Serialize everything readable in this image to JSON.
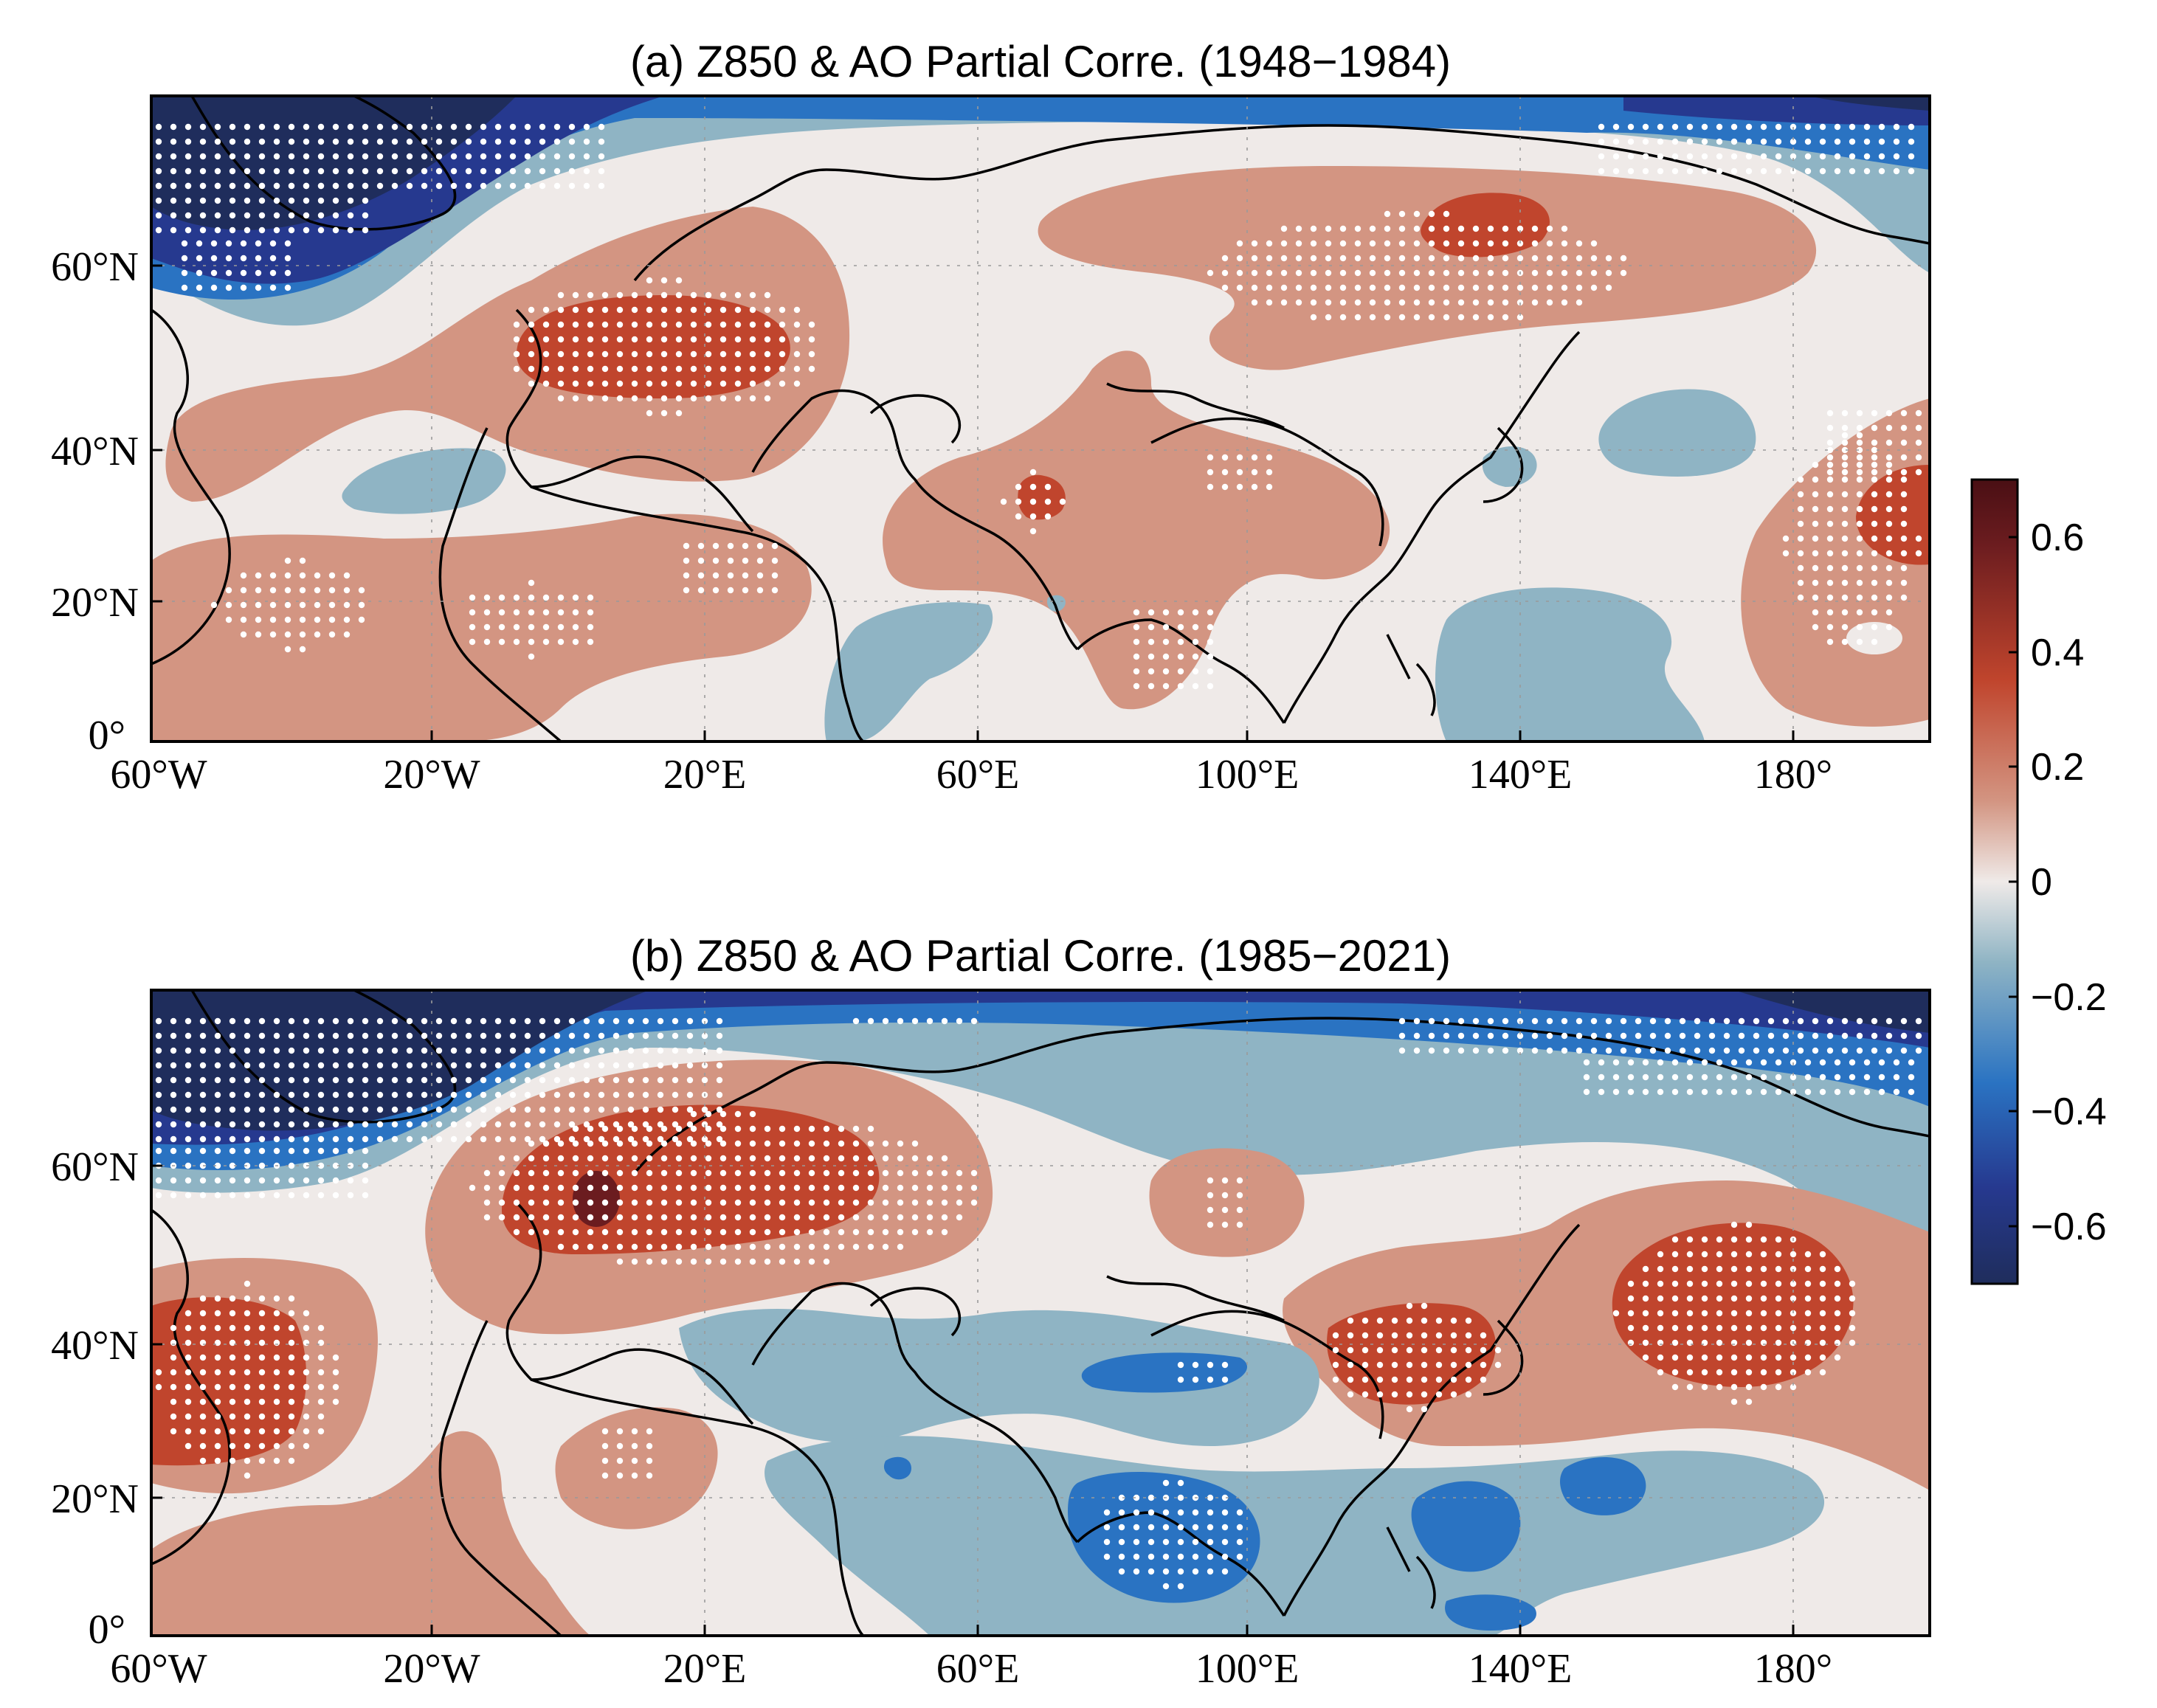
{
  "figure": {
    "panels": [
      {
        "id": "a",
        "title": "(a) Z850 & AO Partial Corre. (1948−1984)",
        "x_ticks": [
          "60°W",
          "20°W",
          "20°E",
          "60°E",
          "100°E",
          "140°E",
          "180°"
        ],
        "y_ticks": [
          "60°N",
          "40°N",
          "20°N",
          "0°"
        ]
      },
      {
        "id": "b",
        "title": "(b) Z850 & AO Partial Corre. (1985−2021)",
        "x_ticks": [
          "60°W",
          "20°W",
          "20°E",
          "60°E",
          "100°E",
          "140°E",
          "180°"
        ],
        "y_ticks": [
          "60°N",
          "40°N",
          "20°N",
          "0°"
        ]
      }
    ],
    "colorbar": {
      "ticks": [
        "0.6",
        "0.4",
        "0.2",
        "0",
        "−0.2",
        "−0.4",
        "−0.6"
      ],
      "range": [
        -0.7,
        0.7
      ],
      "colors": {
        "n4": "#1f2d5c",
        "n3": "#26398f",
        "n2": "#2a73c2",
        "n1": "#8fb4c4",
        "zero": "#efeae8",
        "p1": "#d39582",
        "p2": "#c0452d",
        "p3": "#6b1c1f",
        "p4": "#4a0f14"
      }
    }
  }
}
